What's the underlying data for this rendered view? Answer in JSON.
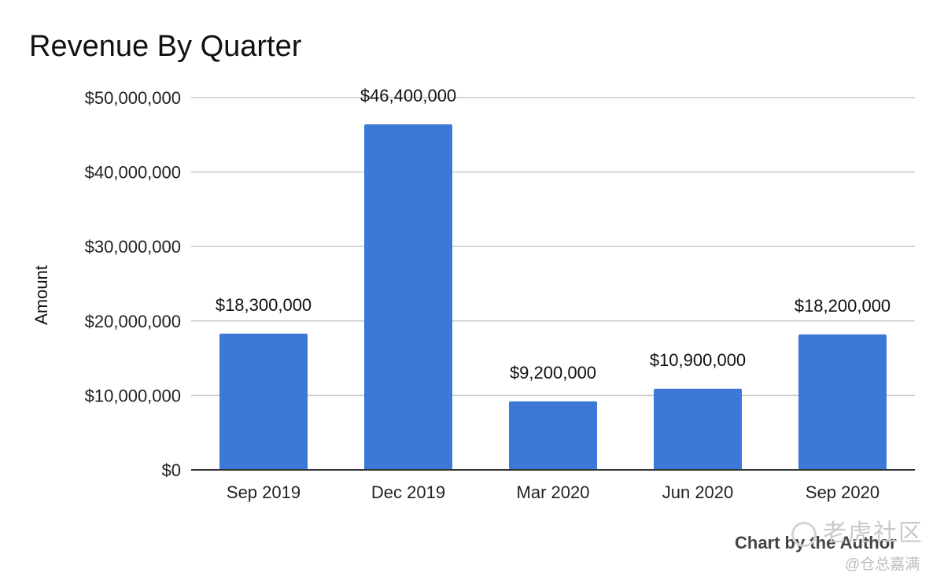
{
  "chart_data": {
    "type": "bar",
    "title": "Revenue By Quarter",
    "xlabel": "",
    "ylabel": "Amount",
    "categories": [
      "Sep 2019",
      "Dec 2019",
      "Mar 2020",
      "Jun 2020",
      "Sep 2020"
    ],
    "values": [
      18300000,
      46400000,
      9200000,
      10900000,
      18200000
    ],
    "data_labels": [
      "$18,300,000",
      "$46,400,000",
      "$9,200,000",
      "$10,900,000",
      "$18,200,000"
    ],
    "ylim": [
      0,
      50000000
    ],
    "yticks": [
      0,
      10000000,
      20000000,
      30000000,
      40000000,
      50000000
    ],
    "ytick_labels": [
      "$0",
      "$10,000,000",
      "$20,000,000",
      "$30,000,000",
      "$40,000,000",
      "$50,000,000"
    ],
    "grid": true,
    "legend": "none",
    "bar_color": "#3c78d8",
    "grid_color": "#cccccc",
    "axis_color": "#333333"
  },
  "credit": "Chart by the Author",
  "watermark": {
    "top": "老虎社区",
    "bottom": "@仓总嘉满"
  }
}
